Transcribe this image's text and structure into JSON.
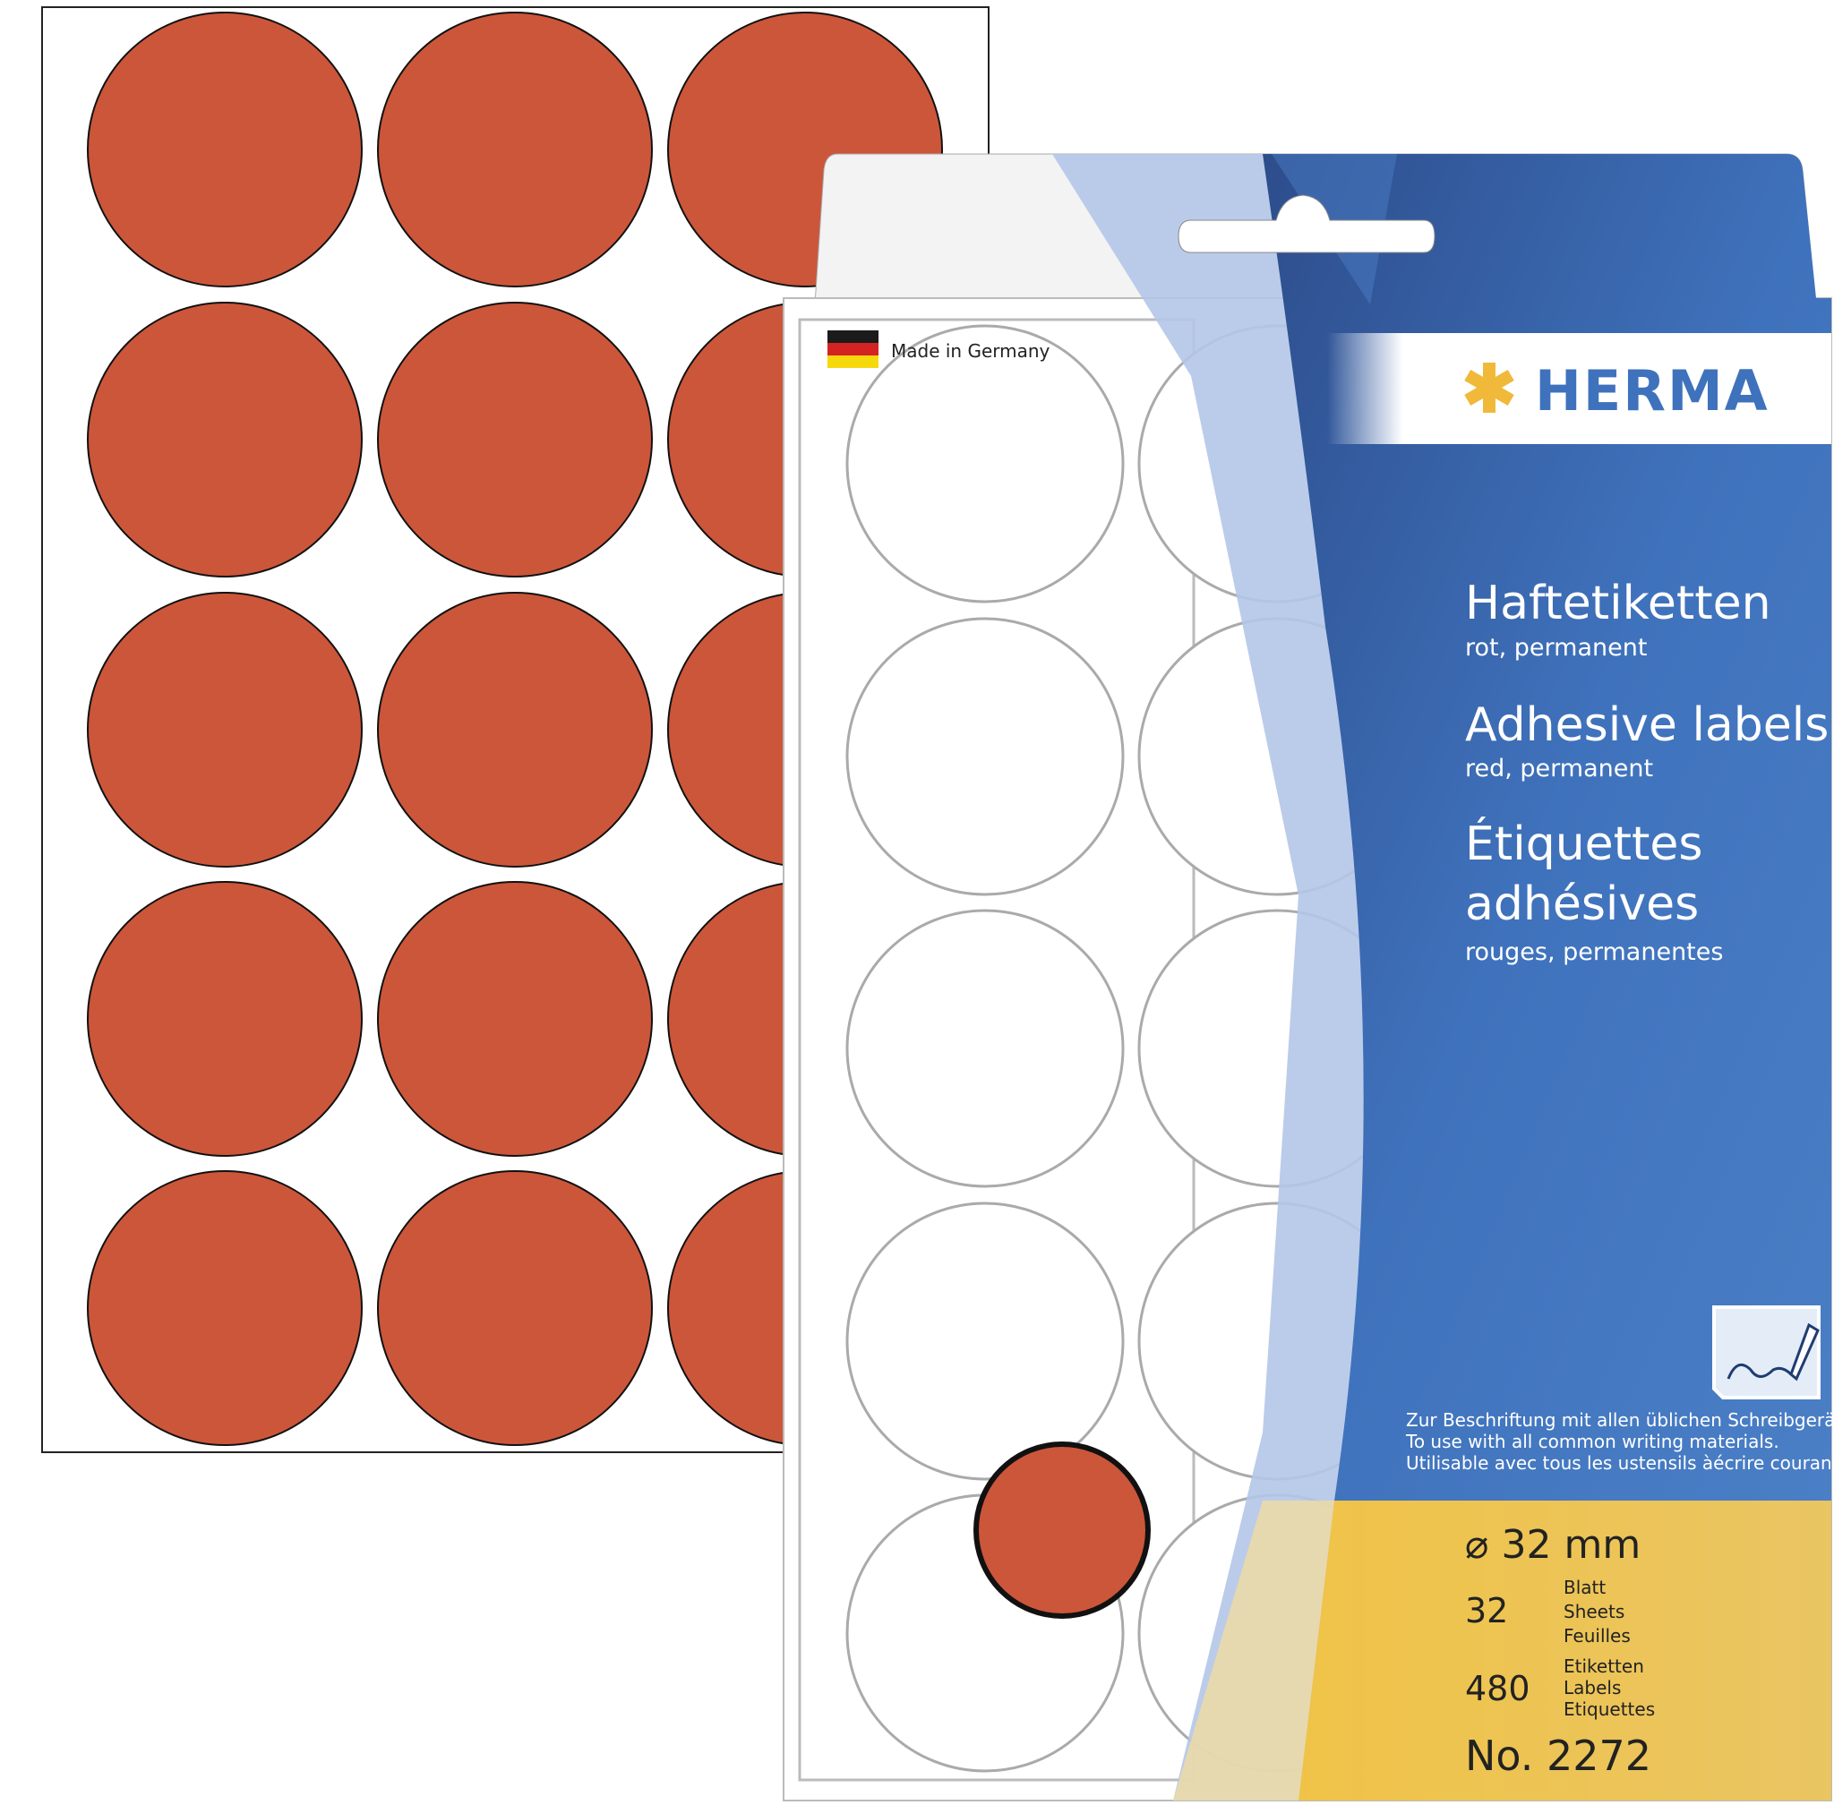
{
  "product": {
    "brand": "HERMA",
    "origin": "Made in Germany",
    "title_de": "Haftetiketten",
    "subtitle_de": "rot, permanent",
    "title_en": "Adhesive labels",
    "subtitle_en": "red, permanent",
    "title_fr_line1": "Étiquettes",
    "title_fr_line2": "adhésives",
    "subtitle_fr": "rouges, permanentes",
    "usage_de": "Zur Beschriftung mit allen üblichen Schreibgeräten.",
    "usage_en": "To use with all common writing materials.",
    "usage_fr": "Utilisable avec tous les ustensils àécrire courants.",
    "diameter": "⌀ 32 mm",
    "sheets_count": "32",
    "sheets_label_de": "Blatt",
    "sheets_label_en": "Sheets",
    "sheets_label_fr": "Feuilles",
    "labels_count": "480",
    "labels_label_de": "Etiketten",
    "labels_label_en": "Labels",
    "labels_label_fr": "Etiquettes",
    "article_number": "No. 2272"
  },
  "colors": {
    "label_red": "#cc563a",
    "brand_blue": "#3f6fb8",
    "dark_blue": "#2c4a86",
    "light_blue": "#b4c6e8",
    "yellow": "#ecc24e",
    "logo_star": "#f0b93a"
  },
  "icons": [
    "german-flag-icon",
    "herma-star-icon",
    "pen-writing-icon"
  ]
}
